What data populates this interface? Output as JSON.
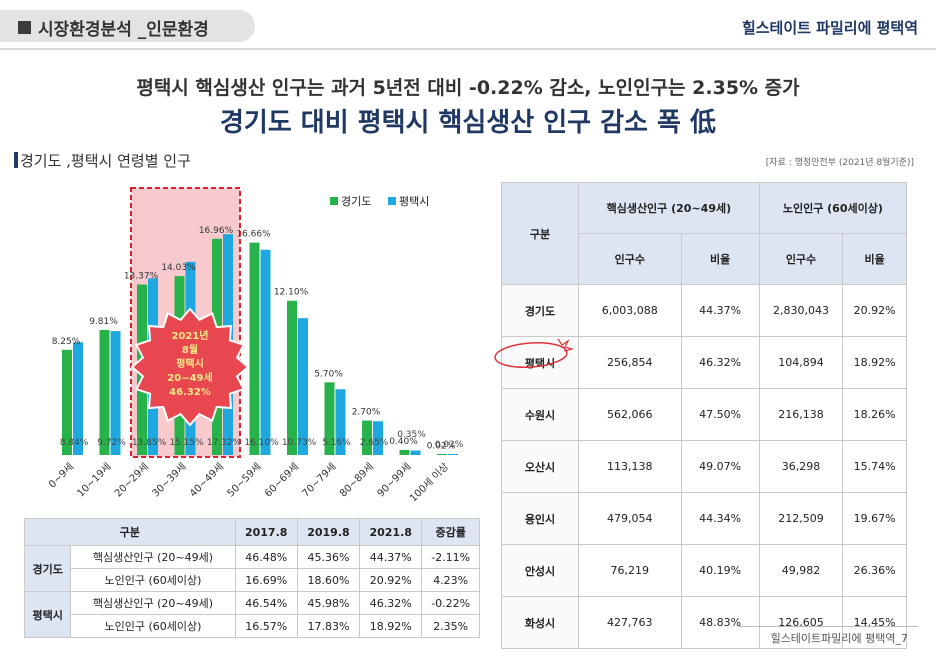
{
  "header": {
    "title": "시장환경분석 _인문환경",
    "brand": "힐스테이트 파밀리에 평택역"
  },
  "subheadline": "평택시 핵심생산 인구는 과거 5년전 대비 -0.22% 감소, 노인인구는 2.35% 증가",
  "headline": "경기도 대비 평택시 핵심생산 인구 감소 폭 低",
  "section_title": "경기도 ,평택시 연령별 인구",
  "source": "[자료 : 행정안전부 (2021년 8월기준)]",
  "badge": {
    "line1": "2021년",
    "line2": "8월",
    "line3": "평택시",
    "line4": "20~49세",
    "line5": "46.32%"
  },
  "chart_data": {
    "type": "bar",
    "categories": [
      "0~9세",
      "10~19세",
      "20~29세",
      "30~39세",
      "40~49세",
      "50~59세",
      "60~69세",
      "70~79세",
      "80~89세",
      "90~99세",
      "100세 이상"
    ],
    "series": [
      {
        "name": "경기도",
        "values": [
          8.25,
          9.81,
          13.37,
          14.03,
          16.96,
          16.66,
          12.1,
          5.7,
          2.7,
          0.4,
          0.02
        ],
        "labels": [
          "8.25%",
          "9.81%",
          "13.37%",
          "14.03%",
          "16.96%",
          "16.66%",
          "12.10%",
          "5.70%",
          "2.70%",
          "0.40%",
          "0.02%"
        ],
        "color": "#27b34a"
      },
      {
        "name": "평택시",
        "values": [
          8.84,
          9.72,
          13.85,
          15.15,
          17.32,
          16.1,
          10.73,
          5.16,
          2.65,
          0.35,
          0.02
        ],
        "labels": [
          "8.84%",
          "9.72%",
          "13.85%",
          "15.15%",
          "17.32%",
          "16.10%",
          "10.73%",
          "5.16%",
          "2.65%",
          "0.35%",
          "0.02%"
        ],
        "color": "#1fa8e0"
      }
    ],
    "ylim": [
      0,
      20
    ],
    "legend": "top-right",
    "highlight_range": [
      "20~29세",
      "40~49세"
    ]
  },
  "history_table": {
    "headers": [
      "구분",
      "2017.8",
      "2019.8",
      "2021.8",
      "증감률"
    ],
    "groups": [
      {
        "name": "경기도",
        "rows": [
          {
            "label": "핵심생산인구 (20~49세)",
            "values": [
              "46.48%",
              "45.36%",
              "44.37%",
              "-2.11%"
            ]
          },
          {
            "label": "노인인구 (60세이상)",
            "values": [
              "16.69%",
              "18.60%",
              "20.92%",
              "4.23%"
            ]
          }
        ]
      },
      {
        "name": "평택시",
        "rows": [
          {
            "label": "핵심생산인구 (20~49세)",
            "values": [
              "46.54%",
              "45.98%",
              "46.32%",
              "-0.22%"
            ]
          },
          {
            "label": "노인인구 (60세이상)",
            "values": [
              "16.57%",
              "17.83%",
              "18.92%",
              "2.35%"
            ]
          }
        ]
      }
    ]
  },
  "region_table": {
    "header_main": "구분",
    "group1": "핵심생산인구 (20~49세)",
    "group2": "노인인구 (60세이상)",
    "sub": [
      "인구수",
      "비율",
      "인구수",
      "비율"
    ],
    "rows": [
      {
        "name": "경기도",
        "values": [
          "6,003,088",
          "44.37%",
          "2,830,043",
          "20.92%"
        ]
      },
      {
        "name": "평택시",
        "values": [
          "256,854",
          "46.32%",
          "104,894",
          "18.92%"
        ]
      },
      {
        "name": "수원시",
        "values": [
          "562,066",
          "47.50%",
          "216,138",
          "18.26%"
        ]
      },
      {
        "name": "오산시",
        "values": [
          "113,138",
          "49.07%",
          "36,298",
          "15.74%"
        ]
      },
      {
        "name": "용인시",
        "values": [
          "479,054",
          "44.34%",
          "212,509",
          "19.67%"
        ]
      },
      {
        "name": "안성시",
        "values": [
          "76,219",
          "40.19%",
          "49,982",
          "26.36%"
        ]
      },
      {
        "name": "화성시",
        "values": [
          "427,763",
          "48.83%",
          "126,605",
          "14.45%"
        ]
      }
    ]
  },
  "footer": "힐스테이트파밀리에 평택역_7"
}
